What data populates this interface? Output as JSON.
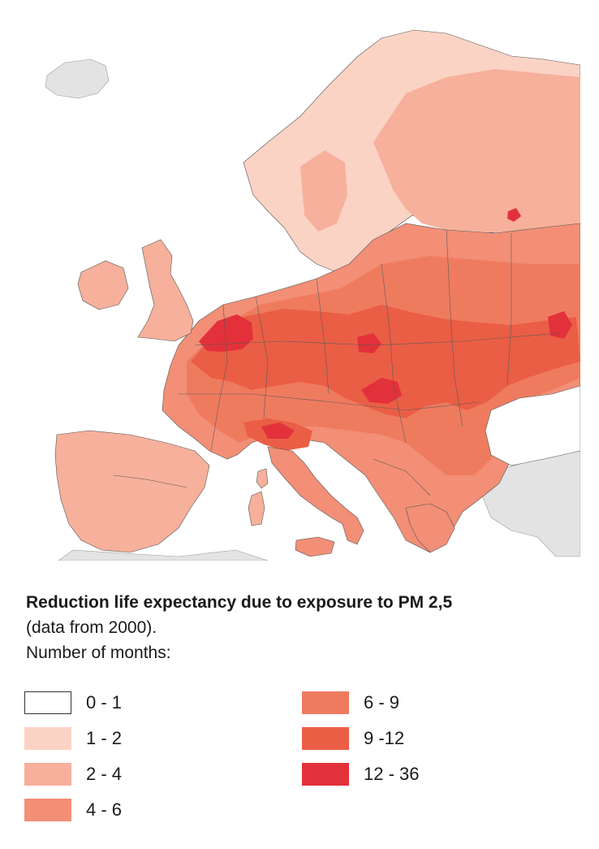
{
  "map": {
    "title": "Reduction life expectancy due to exposure to PM 2,5",
    "subtitle": "(data from 2000).",
    "unit_label": "Number of months:",
    "colors": {
      "sea": "#ffffff",
      "non_data_land": "#e3e3e3",
      "border_line": "#555555"
    }
  },
  "legend": {
    "items": [
      {
        "label": "0 - 1",
        "color": "#ffffff",
        "outlined": true
      },
      {
        "label": "1 - 2",
        "color": "#fbd3c4"
      },
      {
        "label": "2 - 4",
        "color": "#f6b09b"
      },
      {
        "label": "4 - 6",
        "color": "#f28f76"
      },
      {
        "label": "6 - 9",
        "color": "#ef7b5f"
      },
      {
        "label": "9 -12",
        "color": "#ea5e45"
      },
      {
        "label": "12 - 36",
        "color": "#e2313a"
      }
    ]
  }
}
